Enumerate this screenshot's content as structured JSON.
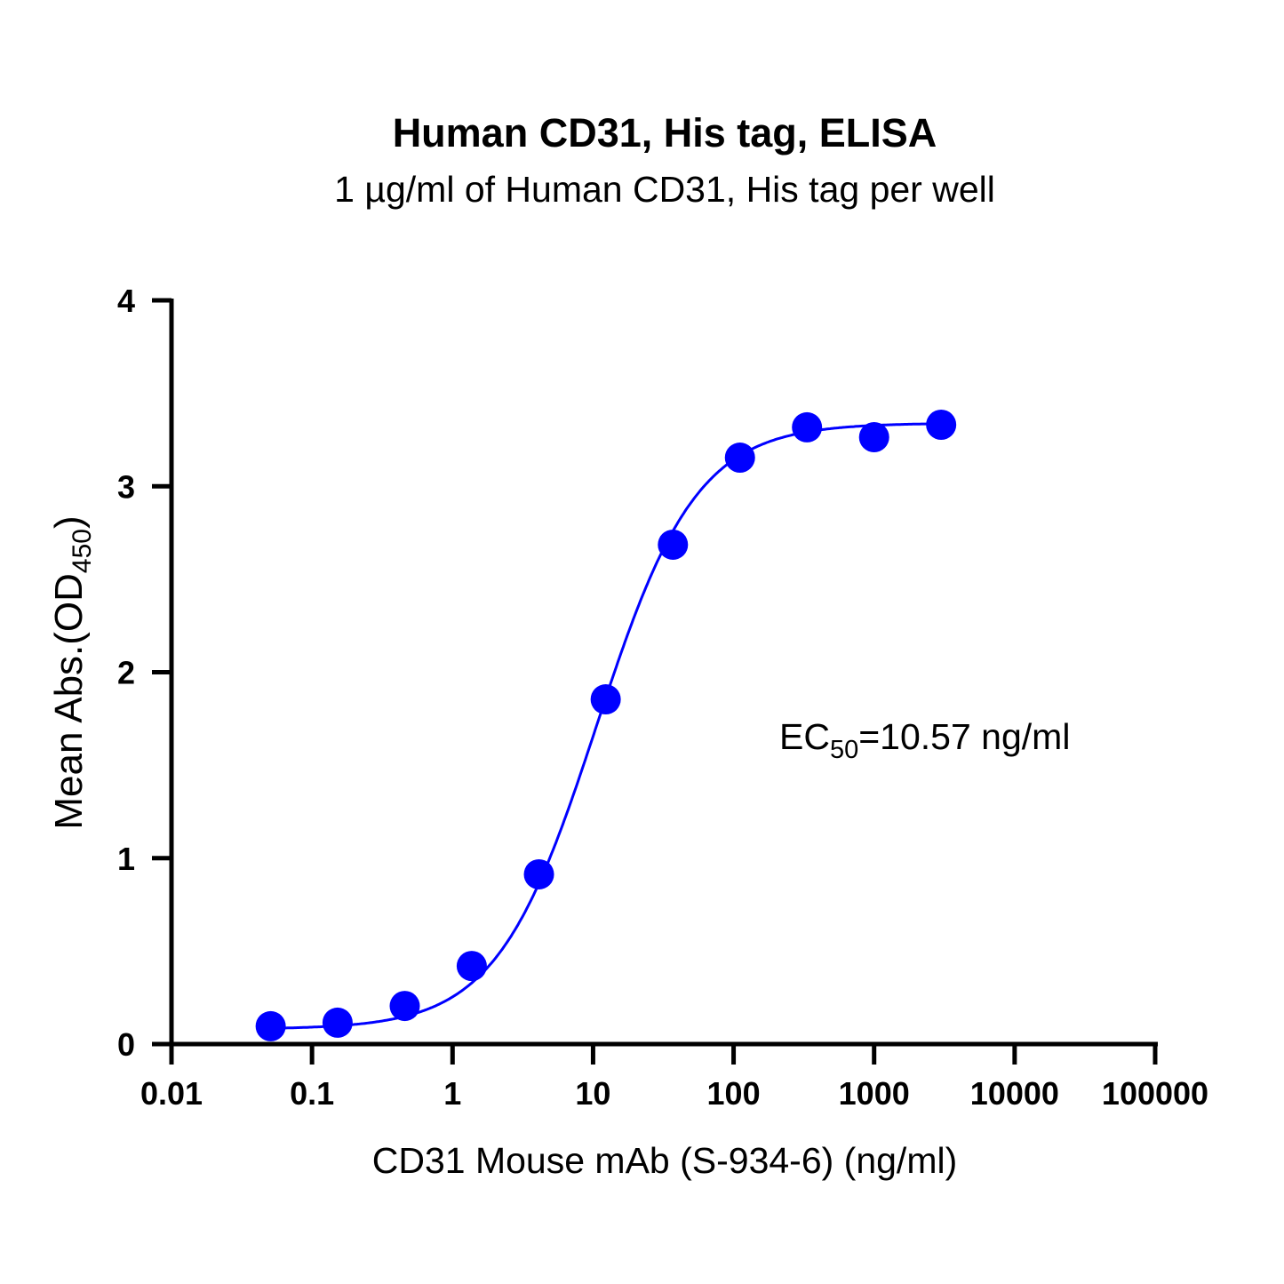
{
  "chart_data": {
    "type": "scatter",
    "title": "Human CD31, His tag, ELISA",
    "subtitle": "1 µg/ml of Human CD31, His tag per well",
    "xlabel": "CD31 Mouse mAb (S-934-6) (ng/ml)",
    "ylabel_main": "Mean Abs.(OD",
    "ylabel_sub": "450",
    "ylabel_end": ")",
    "x_scale": "log",
    "xlim": [
      0.01,
      100000
    ],
    "ylim": [
      0,
      4
    ],
    "x_ticks": [
      "0.01",
      "0.1",
      "1",
      "10",
      "100",
      "1000",
      "10000",
      "100000"
    ],
    "y_ticks": [
      "0",
      "1",
      "2",
      "3",
      "4"
    ],
    "grid": false,
    "color": "#0000ff",
    "points": {
      "x": [
        0.0508,
        0.152,
        0.457,
        1.37,
        4.12,
        12.3,
        37.0,
        111,
        333,
        1000,
        3000
      ],
      "y": [
        0.096,
        0.115,
        0.205,
        0.42,
        0.913,
        1.854,
        2.686,
        3.154,
        3.317,
        3.264,
        3.331
      ]
    },
    "fit": {
      "model": "4PL",
      "bottom": 0.08,
      "top": 3.34,
      "ec50": 10.57,
      "hill": 1.22
    },
    "annotation": {
      "prefix": "EC",
      "sub": "50",
      "suffix": "=10.57 ng/ml"
    }
  }
}
